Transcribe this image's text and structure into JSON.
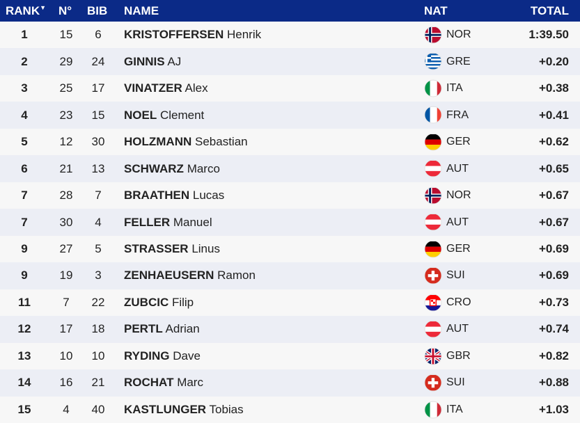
{
  "header": {
    "rank": "RANK",
    "no": "N°",
    "bib": "BIB",
    "name": "NAME",
    "nat": "NAT",
    "total": "TOTAL",
    "sort_icon": "triangle-down"
  },
  "colors": {
    "header_bg": "#0b2a87",
    "row_odd": "#f7f7f7",
    "row_even": "#eceef5"
  },
  "rows": [
    {
      "rank": "1",
      "no": "15",
      "bib": "6",
      "last": "KRISTOFFERSEN",
      "first": "Henrik",
      "nat": "NOR",
      "total": "1:39.50"
    },
    {
      "rank": "2",
      "no": "29",
      "bib": "24",
      "last": "GINNIS",
      "first": "AJ",
      "nat": "GRE",
      "total": "+0.20"
    },
    {
      "rank": "3",
      "no": "25",
      "bib": "17",
      "last": "VINATZER",
      "first": "Alex",
      "nat": "ITA",
      "total": "+0.38"
    },
    {
      "rank": "4",
      "no": "23",
      "bib": "15",
      "last": "NOEL",
      "first": "Clement",
      "nat": "FRA",
      "total": "+0.41"
    },
    {
      "rank": "5",
      "no": "12",
      "bib": "30",
      "last": "HOLZMANN",
      "first": "Sebastian",
      "nat": "GER",
      "total": "+0.62"
    },
    {
      "rank": "6",
      "no": "21",
      "bib": "13",
      "last": "SCHWARZ",
      "first": "Marco",
      "nat": "AUT",
      "total": "+0.65"
    },
    {
      "rank": "7",
      "no": "28",
      "bib": "7",
      "last": "BRAATHEN",
      "first": "Lucas",
      "nat": "NOR",
      "total": "+0.67"
    },
    {
      "rank": "7",
      "no": "30",
      "bib": "4",
      "last": "FELLER",
      "first": "Manuel",
      "nat": "AUT",
      "total": "+0.67"
    },
    {
      "rank": "9",
      "no": "27",
      "bib": "5",
      "last": "STRASSER",
      "first": "Linus",
      "nat": "GER",
      "total": "+0.69"
    },
    {
      "rank": "9",
      "no": "19",
      "bib": "3",
      "last": "ZENHAEUSERN",
      "first": "Ramon",
      "nat": "SUI",
      "total": "+0.69"
    },
    {
      "rank": "11",
      "no": "7",
      "bib": "22",
      "last": "ZUBCIC",
      "first": "Filip",
      "nat": "CRO",
      "total": "+0.73"
    },
    {
      "rank": "12",
      "no": "17",
      "bib": "18",
      "last": "PERTL",
      "first": "Adrian",
      "nat": "AUT",
      "total": "+0.74"
    },
    {
      "rank": "13",
      "no": "10",
      "bib": "10",
      "last": "RYDING",
      "first": "Dave",
      "nat": "GBR",
      "total": "+0.82"
    },
    {
      "rank": "14",
      "no": "16",
      "bib": "21",
      "last": "ROCHAT",
      "first": "Marc",
      "nat": "SUI",
      "total": "+0.88"
    },
    {
      "rank": "15",
      "no": "4",
      "bib": "40",
      "last": "KASTLUNGER",
      "first": "Tobias",
      "nat": "ITA",
      "total": "+1.03"
    }
  ]
}
